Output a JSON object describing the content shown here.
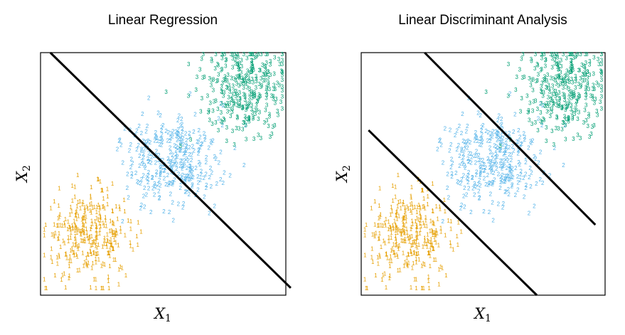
{
  "chart_data": [
    {
      "type": "scatter",
      "title": "Linear Regression",
      "xlabel": "X1",
      "ylabel": "X2",
      "xlabel_main": "X",
      "xlabel_sub": "1",
      "ylabel_main": "X",
      "ylabel_sub": "2",
      "xlim": [
        0,
        10
      ],
      "ylim": [
        0,
        10
      ],
      "grid": false,
      "ticks": false,
      "classes": [
        {
          "label": "1",
          "color": "#E69F00",
          "center": [
            2.0,
            2.4
          ],
          "spread": [
            0.9,
            0.9
          ],
          "count": 320
        },
        {
          "label": "2",
          "color": "#56B4E9",
          "center": [
            5.4,
            5.4
          ],
          "spread": [
            0.95,
            0.95
          ],
          "count": 320
        },
        {
          "label": "3",
          "color": "#009E73",
          "center": [
            8.2,
            8.4
          ],
          "spread": [
            0.95,
            0.95
          ],
          "count": 320
        }
      ],
      "boundaries": [
        {
          "x": [
            0.4,
            10.2
          ],
          "y": [
            10.0,
            0.3
          ]
        }
      ]
    },
    {
      "type": "scatter",
      "title": "Linear Discriminant Analysis",
      "xlabel": "X1",
      "ylabel": "X2",
      "xlabel_main": "X",
      "xlabel_sub": "1",
      "ylabel_main": "X",
      "ylabel_sub": "2",
      "xlim": [
        0,
        10
      ],
      "ylim": [
        0,
        10
      ],
      "grid": false,
      "ticks": false,
      "classes": [
        {
          "label": "1",
          "color": "#E69F00",
          "center": [
            2.0,
            2.4
          ],
          "spread": [
            0.9,
            0.9
          ],
          "count": 320
        },
        {
          "label": "2",
          "color": "#56B4E9",
          "center": [
            5.4,
            5.4
          ],
          "spread": [
            0.95,
            0.95
          ],
          "count": 320
        },
        {
          "label": "3",
          "color": "#009E73",
          "center": [
            8.2,
            8.4
          ],
          "spread": [
            0.95,
            0.95
          ],
          "count": 320
        }
      ],
      "boundaries": [
        {
          "x": [
            0.3,
            7.2
          ],
          "y": [
            6.8,
            0.0
          ]
        },
        {
          "x": [
            2.6,
            9.6
          ],
          "y": [
            10.0,
            2.9
          ]
        }
      ]
    }
  ]
}
